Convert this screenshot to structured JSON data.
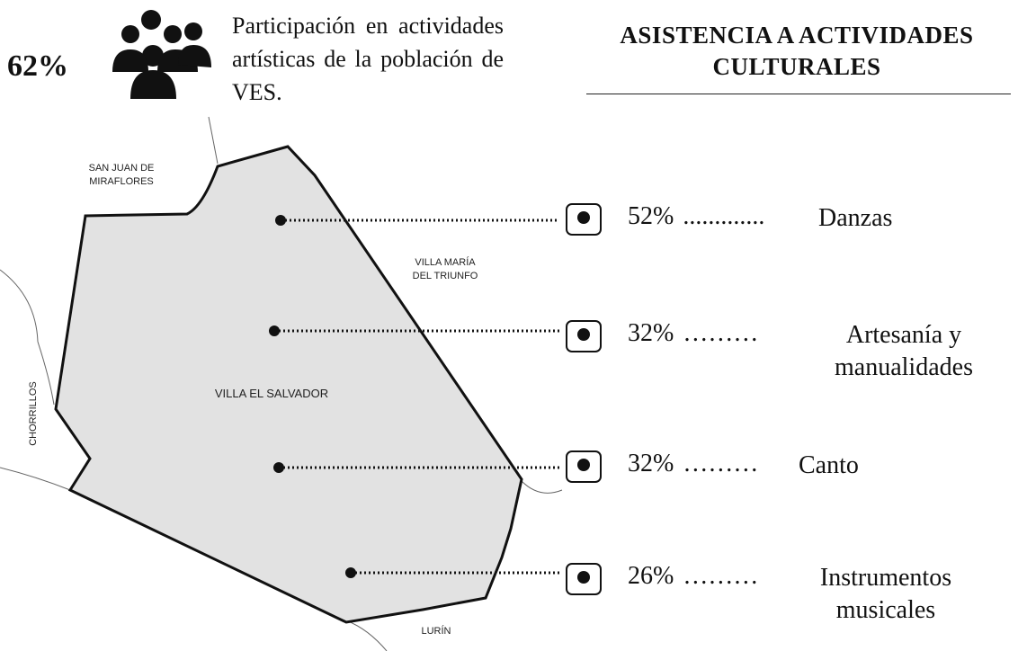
{
  "header": {
    "stat": "62%",
    "description": "Participación en actividades artísticas de la población de VES.",
    "title": "ASISTENCIA A ACTIVIDADES CULTURALES"
  },
  "map": {
    "labels": [
      [
        "SAN JUAN DE",
        "MIRAFLORES"
      ],
      [
        "VILLA MARÍA",
        "DEL TRIUNFO"
      ],
      "CHORRILLOS",
      "VILLA EL SALVADOR",
      "LURÍN"
    ]
  },
  "activities": [
    {
      "percent": "52%",
      "leader": ".............",
      "name": "Danzas"
    },
    {
      "percent": "32%",
      "leader": "………",
      "name": "Artesanía y manualidades"
    },
    {
      "percent": "32%",
      "leader": "………",
      "name": "Canto"
    },
    {
      "percent": "26%",
      "leader": "………",
      "name": "Instrumentos musicales"
    }
  ]
}
